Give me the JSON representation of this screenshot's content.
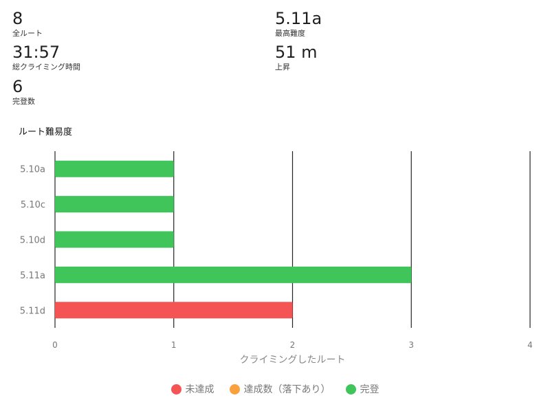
{
  "stats": {
    "total_routes": {
      "value": "8",
      "label": "全ルート"
    },
    "max_grade": {
      "value": "5.11a",
      "label": "最高難度"
    },
    "climbing_time": {
      "value": "31:57",
      "label": "総クライミング時間"
    },
    "ascent": {
      "value": "51 m",
      "label": "上昇"
    },
    "sends": {
      "value": "6",
      "label": "完登数"
    }
  },
  "section_title": "ルート難易度",
  "colors": {
    "not_sent": "#f55454",
    "sent_with_falls": "#f9a03f",
    "sent": "#3fc55a"
  },
  "legend": [
    {
      "key": "not_sent",
      "label": "未達成"
    },
    {
      "key": "sent_with_falls",
      "label": "達成数（落下あり）"
    },
    {
      "key": "sent",
      "label": "完登"
    }
  ],
  "chart_data": {
    "type": "bar",
    "orientation": "horizontal",
    "categories": [
      "5.10a",
      "5.10c",
      "5.10d",
      "5.11a",
      "5.11d"
    ],
    "series": [
      {
        "name": "未達成",
        "color_key": "not_sent",
        "values": [
          0,
          0,
          0,
          0,
          2
        ]
      },
      {
        "name": "達成数（落下あり）",
        "color_key": "sent_with_falls",
        "values": [
          0,
          0,
          0,
          0,
          0
        ]
      },
      {
        "name": "完登",
        "color_key": "sent",
        "values": [
          1,
          1,
          1,
          3,
          0
        ]
      }
    ],
    "xlabel": "クライミングしたルート",
    "xlim": [
      0,
      4
    ],
    "xticks": [
      0,
      1,
      2,
      3,
      4
    ],
    "grid": true,
    "legend_position": "bottom"
  }
}
